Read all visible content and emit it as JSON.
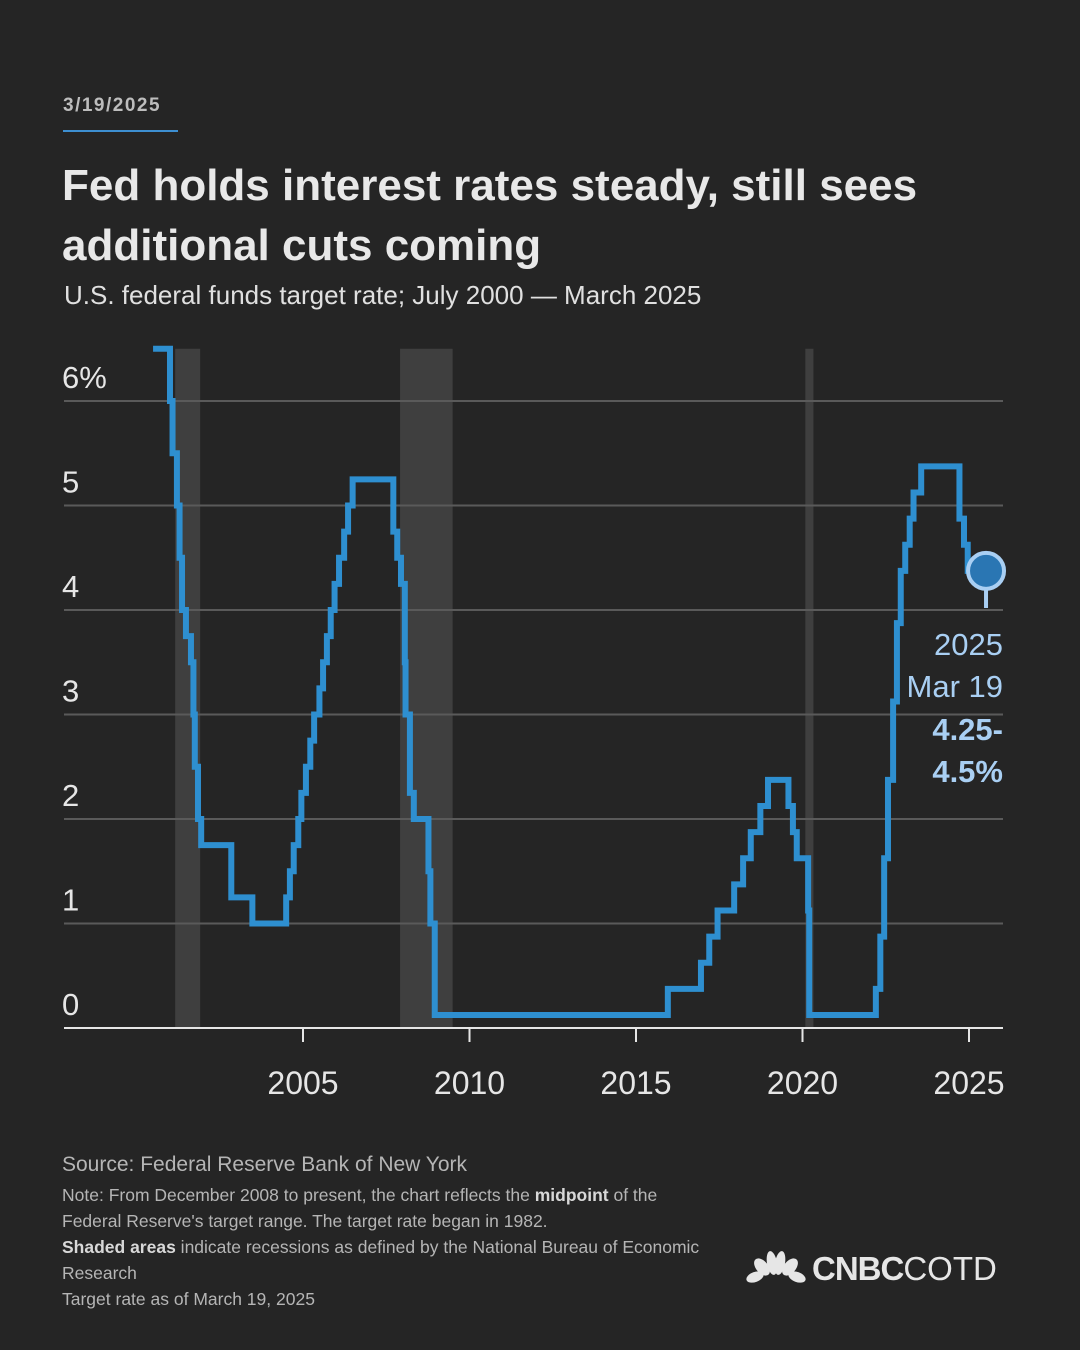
{
  "date": "3/19/2025",
  "title": "Fed holds interest rates steady, still sees additional cuts coming",
  "subtitle": "U.S. federal funds target rate; July 2000 — March 2025",
  "source": "Source: Federal Reserve Bank of New York",
  "note": {
    "p1": "Note: From December 2008 to present, the chart reflects the ",
    "b1": "midpoint",
    "p2": " of the Federal Reserve's target range. The target rate began in 1982.",
    "b2": "Shaded areas",
    "p3": " indicate recessions as defined by the National Bureau of Economic Research",
    "p4": "Target rate as of March 19, 2025"
  },
  "logo": {
    "brand": "CNBC",
    "suffix": "COTD"
  },
  "colors": {
    "background": "#252525",
    "line": "#2e8fd0",
    "annotation": "#a9cff3",
    "recession": "#3f3f3f",
    "grid": "#5a5a5a"
  },
  "chart_data": {
    "type": "line",
    "step": true,
    "title": "Fed holds interest rates steady, still sees additional cuts coming",
    "subtitle": "U.S. federal funds target rate; July 2000 — March 2025",
    "xlim": [
      "2000-01-01",
      "2026-01-01"
    ],
    "ylim": [
      0,
      6.5
    ],
    "x_ticks": [
      "2005",
      "2010",
      "2015",
      "2020",
      "2025"
    ],
    "y_ticks": [
      {
        "v": 0,
        "label": "0"
      },
      {
        "v": 1,
        "label": "1"
      },
      {
        "v": 2,
        "label": "2"
      },
      {
        "v": 3,
        "label": "3"
      },
      {
        "v": 4,
        "label": "4"
      },
      {
        "v": 5,
        "label": "5"
      },
      {
        "v": 6,
        "label": "6%"
      }
    ],
    "grid": "horizontal",
    "recessions": [
      [
        "2001-03-01",
        "2001-11-30"
      ],
      [
        "2007-12-01",
        "2009-06-30"
      ],
      [
        "2020-02-01",
        "2020-04-30"
      ]
    ],
    "points": [
      [
        "2000-07-01",
        6.5
      ],
      [
        "2001-01-03",
        6.0
      ],
      [
        "2001-01-31",
        5.5
      ],
      [
        "2001-03-20",
        5.0
      ],
      [
        "2001-04-18",
        4.5
      ],
      [
        "2001-05-15",
        4.0
      ],
      [
        "2001-06-27",
        3.75
      ],
      [
        "2001-08-21",
        3.5
      ],
      [
        "2001-09-17",
        3.0
      ],
      [
        "2001-10-02",
        2.5
      ],
      [
        "2001-11-06",
        2.0
      ],
      [
        "2001-12-11",
        1.75
      ],
      [
        "2002-11-06",
        1.25
      ],
      [
        "2003-06-25",
        1.0
      ],
      [
        "2004-06-30",
        1.25
      ],
      [
        "2004-08-10",
        1.5
      ],
      [
        "2004-09-21",
        1.75
      ],
      [
        "2004-11-10",
        2.0
      ],
      [
        "2004-12-14",
        2.25
      ],
      [
        "2005-02-02",
        2.5
      ],
      [
        "2005-03-22",
        2.75
      ],
      [
        "2005-05-03",
        3.0
      ],
      [
        "2005-06-30",
        3.25
      ],
      [
        "2005-08-09",
        3.5
      ],
      [
        "2005-09-20",
        3.75
      ],
      [
        "2005-11-01",
        4.0
      ],
      [
        "2005-12-13",
        4.25
      ],
      [
        "2006-01-31",
        4.5
      ],
      [
        "2006-03-28",
        4.75
      ],
      [
        "2006-05-10",
        5.0
      ],
      [
        "2006-06-29",
        5.25
      ],
      [
        "2007-09-18",
        4.75
      ],
      [
        "2007-10-31",
        4.5
      ],
      [
        "2007-12-11",
        4.25
      ],
      [
        "2008-01-22",
        3.5
      ],
      [
        "2008-01-30",
        3.0
      ],
      [
        "2008-03-18",
        2.25
      ],
      [
        "2008-04-30",
        2.0
      ],
      [
        "2008-10-08",
        1.5
      ],
      [
        "2008-10-29",
        1.0
      ],
      [
        "2008-12-16",
        0.125
      ],
      [
        "2015-12-16",
        0.375
      ],
      [
        "2016-12-14",
        0.625
      ],
      [
        "2017-03-15",
        0.875
      ],
      [
        "2017-06-14",
        1.125
      ],
      [
        "2017-12-13",
        1.375
      ],
      [
        "2018-03-21",
        1.625
      ],
      [
        "2018-06-13",
        1.875
      ],
      [
        "2018-09-26",
        2.125
      ],
      [
        "2018-12-19",
        2.375
      ],
      [
        "2019-07-31",
        2.125
      ],
      [
        "2019-09-18",
        1.875
      ],
      [
        "2019-10-30",
        1.625
      ],
      [
        "2020-03-03",
        1.125
      ],
      [
        "2020-03-15",
        0.125
      ],
      [
        "2022-03-16",
        0.375
      ],
      [
        "2022-05-04",
        0.875
      ],
      [
        "2022-06-15",
        1.625
      ],
      [
        "2022-07-27",
        2.375
      ],
      [
        "2022-09-21",
        3.125
      ],
      [
        "2022-11-02",
        3.875
      ],
      [
        "2022-12-14",
        4.375
      ],
      [
        "2023-02-01",
        4.625
      ],
      [
        "2023-03-22",
        4.875
      ],
      [
        "2023-05-03",
        5.125
      ],
      [
        "2023-07-26",
        5.375
      ],
      [
        "2024-09-18",
        4.875
      ],
      [
        "2024-11-07",
        4.625
      ],
      [
        "2024-12-18",
        4.375
      ],
      [
        "2025-03-19",
        4.375
      ]
    ],
    "annotation": {
      "date": "2025-03-19",
      "value": 4.375,
      "year": "2025",
      "day": "Mar 19",
      "range_line1": "4.25-",
      "range_line2": "4.5%"
    }
  }
}
